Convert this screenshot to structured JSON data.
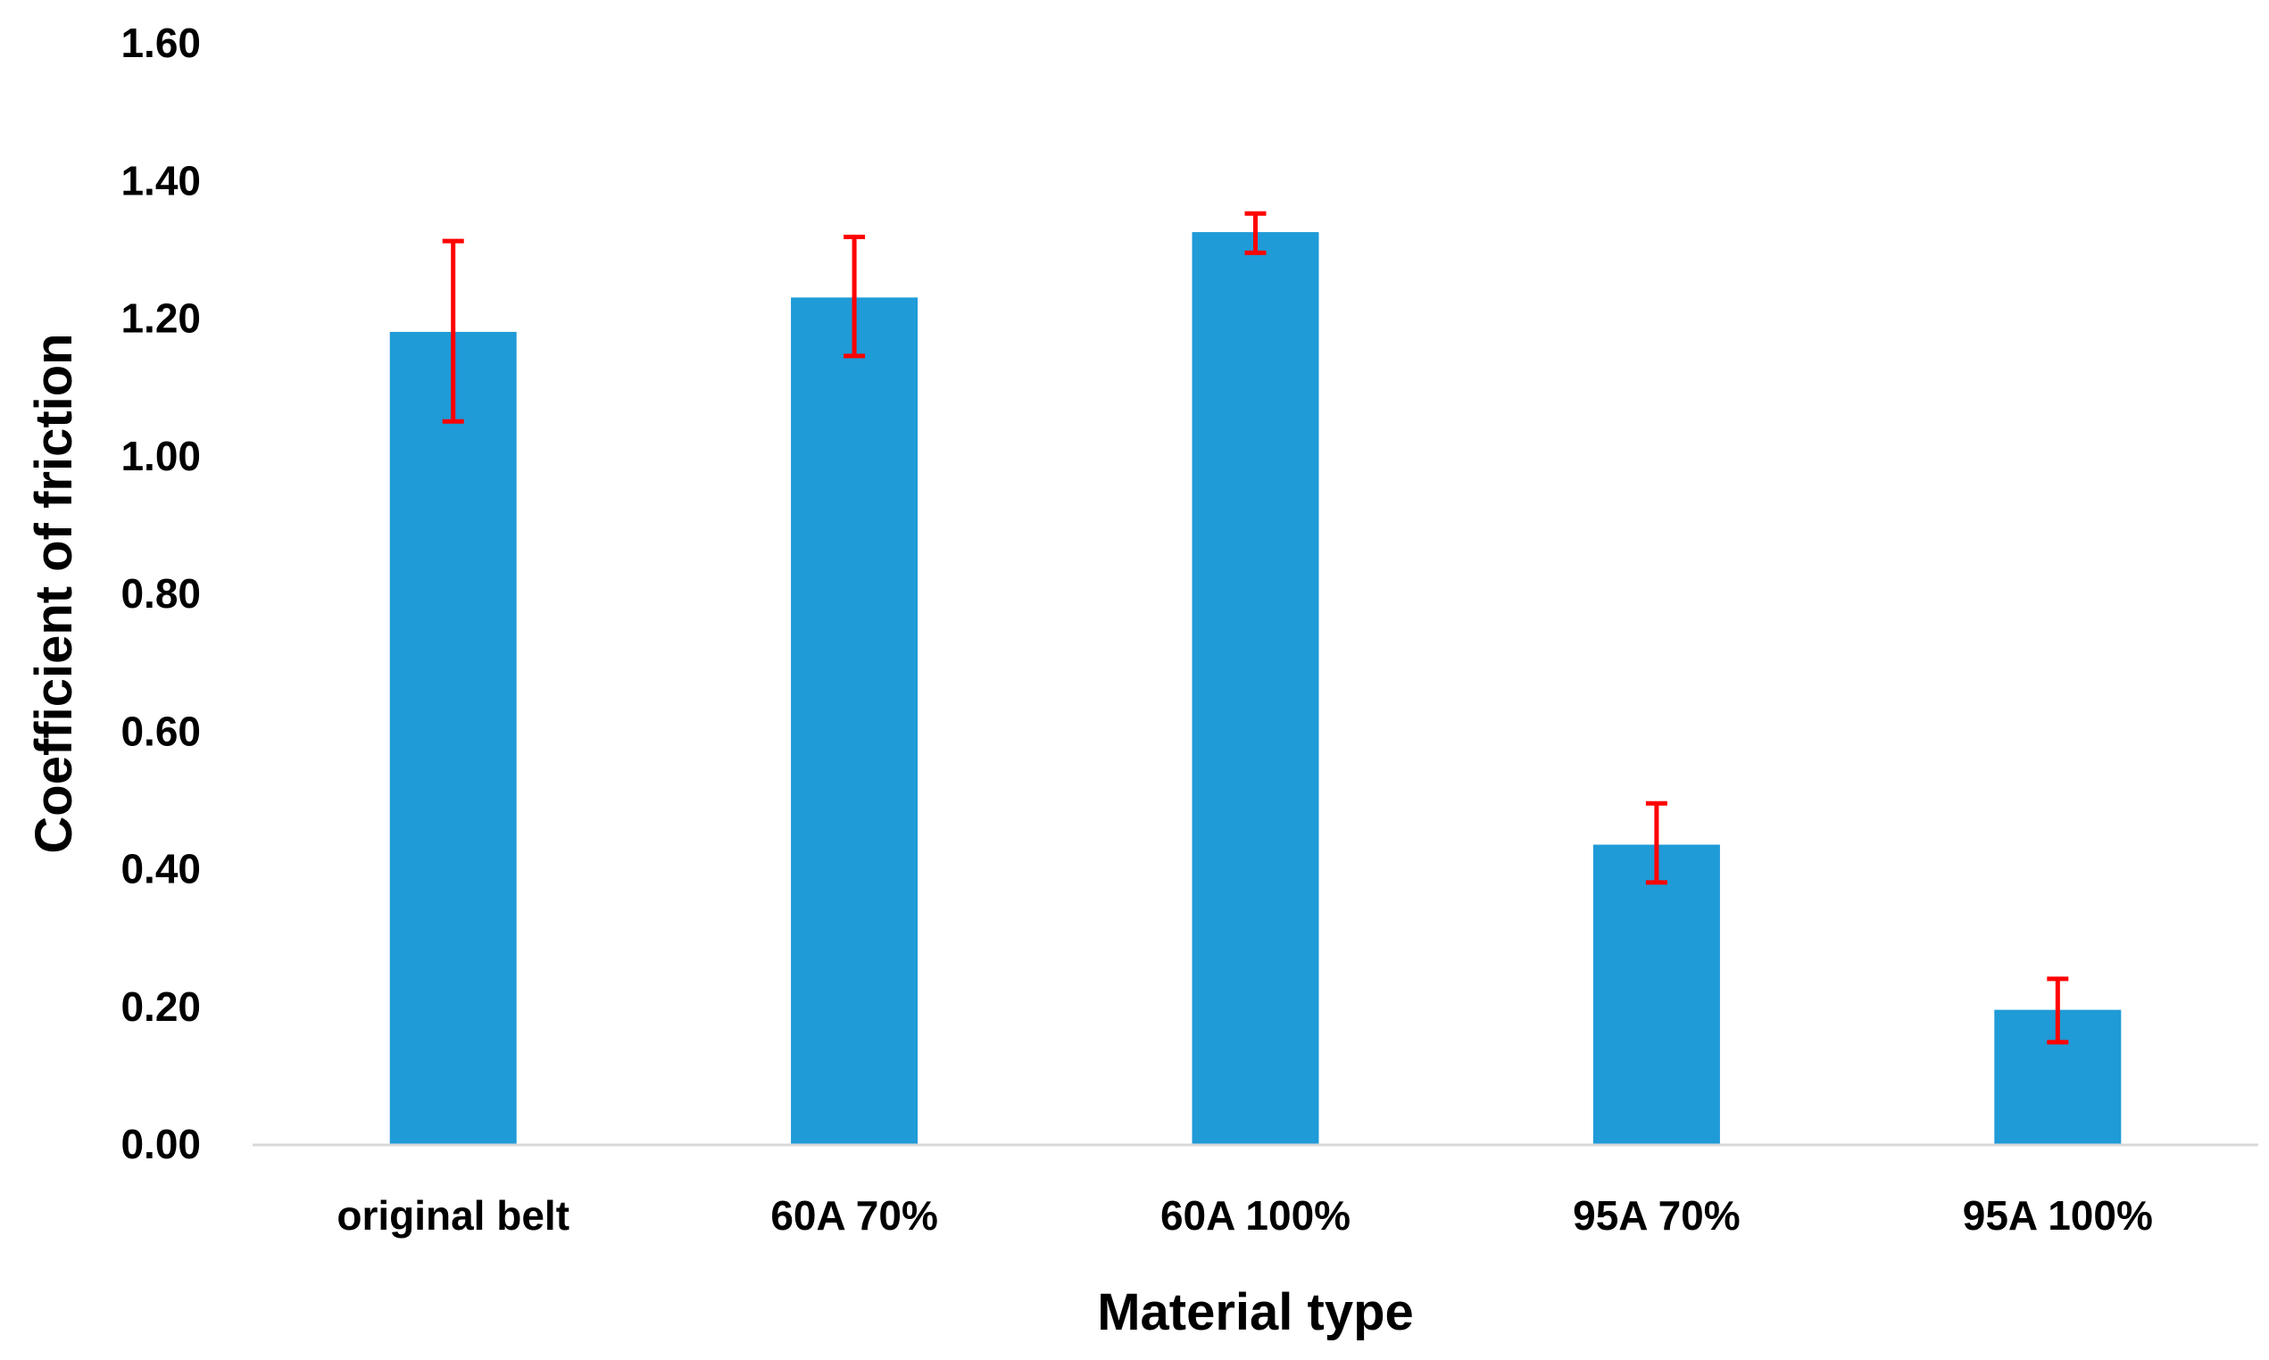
{
  "chart_data": {
    "type": "bar",
    "title": "",
    "xlabel": "Material type",
    "ylabel": "Coefficient of friction",
    "categories": [
      "original belt",
      "60A 70%",
      "60A 100%",
      "95A 70%",
      "95A 100%"
    ],
    "values": [
      1.18,
      1.23,
      1.325,
      0.435,
      0.195
    ],
    "error_low": [
      1.05,
      1.145,
      1.295,
      0.38,
      0.148
    ],
    "error_high": [
      1.312,
      1.318,
      1.352,
      0.495,
      0.24
    ],
    "ylim": [
      0,
      1.6
    ],
    "yticks": [
      "0.00",
      "0.20",
      "0.40",
      "0.60",
      "0.80",
      "1.00",
      "1.20",
      "1.40",
      "1.60"
    ],
    "bar_color": "#1f9bd7",
    "error_color": "#ff0000",
    "axis_color": "#d9d9d9",
    "grid": false,
    "legend": "none"
  }
}
